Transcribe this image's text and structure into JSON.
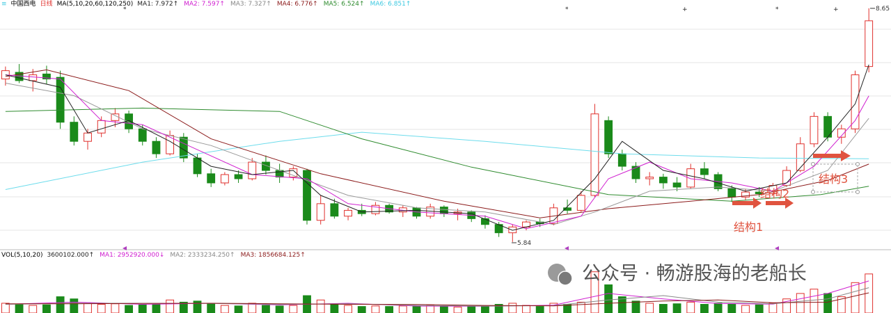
{
  "chart_data": {
    "type": "candlestick",
    "title": "中国西电",
    "period": "日线",
    "ma_label": "MA(5,10,20,60,120,250)",
    "indicators": [
      {
        "text": "MA1: 7.972↑",
        "color": "#222222"
      },
      {
        "text": "MA2: 7.597↑",
        "color": "#d020d0"
      },
      {
        "text": "MA3: 7.327↑",
        "color": "#888888"
      },
      {
        "text": "MA4: 6.776↑",
        "color": "#8b1a1a"
      },
      {
        "text": "MA5: 6.524↑",
        "color": "#2e8b2e"
      },
      {
        "text": "MA6: 6.851↑",
        "color": "#3cc8e0"
      }
    ],
    "up_color": "#e0302c",
    "down_color": "#1a8a1a",
    "xlim": [
      -0.4,
      63.6
    ],
    "ylim": [
      5.78,
      8.75
    ],
    "ohlc": [
      [
        7.8,
        7.95,
        7.72,
        7.9
      ],
      [
        7.88,
        7.98,
        7.75,
        7.78
      ],
      [
        7.78,
        7.92,
        7.65,
        7.85
      ],
      [
        7.86,
        7.96,
        7.74,
        7.8
      ],
      [
        7.82,
        7.9,
        7.2,
        7.28
      ],
      [
        7.28,
        7.35,
        7.0,
        7.05
      ],
      [
        7.05,
        7.2,
        6.95,
        7.15
      ],
      [
        7.15,
        7.35,
        7.1,
        7.3
      ],
      [
        7.3,
        7.45,
        7.22,
        7.38
      ],
      [
        7.38,
        7.42,
        7.15,
        7.2
      ],
      [
        7.2,
        7.25,
        7.0,
        7.05
      ],
      [
        7.05,
        7.1,
        6.85,
        6.9
      ],
      [
        6.9,
        7.18,
        6.88,
        7.12
      ],
      [
        7.1,
        7.15,
        6.8,
        6.85
      ],
      [
        6.85,
        6.9,
        6.62,
        6.66
      ],
      [
        6.66,
        6.72,
        6.5,
        6.55
      ],
      [
        6.55,
        6.68,
        6.52,
        6.65
      ],
      [
        6.65,
        6.7,
        6.55,
        6.6
      ],
      [
        6.6,
        6.85,
        6.58,
        6.8
      ],
      [
        6.8,
        6.88,
        6.65,
        6.7
      ],
      [
        6.7,
        6.78,
        6.55,
        6.62
      ],
      [
        6.62,
        6.75,
        6.58,
        6.72
      ],
      [
        6.7,
        6.72,
        6.05,
        6.1
      ],
      [
        6.1,
        6.4,
        6.05,
        6.3
      ],
      [
        6.3,
        6.36,
        6.12,
        6.15
      ],
      [
        6.15,
        6.25,
        6.1,
        6.22
      ],
      [
        6.22,
        6.3,
        6.15,
        6.18
      ],
      [
        6.18,
        6.32,
        6.16,
        6.28
      ],
      [
        6.28,
        6.3,
        6.18,
        6.2
      ],
      [
        6.2,
        6.28,
        6.14,
        6.25
      ],
      [
        6.25,
        6.26,
        6.12,
        6.15
      ],
      [
        6.15,
        6.3,
        6.12,
        6.26
      ],
      [
        6.26,
        6.28,
        6.14,
        6.18
      ],
      [
        6.18,
        6.24,
        6.1,
        6.2
      ],
      [
        6.2,
        6.22,
        6.08,
        6.12
      ],
      [
        6.12,
        6.16,
        6.0,
        6.05
      ],
      [
        6.05,
        6.08,
        5.9,
        5.95
      ],
      [
        5.95,
        6.05,
        5.84,
        6.02
      ],
      [
        6.02,
        6.1,
        5.98,
        6.08
      ],
      [
        6.08,
        6.12,
        6.02,
        6.06
      ],
      [
        6.06,
        6.3,
        6.04,
        6.25
      ],
      [
        6.25,
        6.35,
        6.18,
        6.22
      ],
      [
        6.22,
        6.45,
        6.2,
        6.4
      ],
      [
        6.4,
        7.5,
        6.38,
        7.38
      ],
      [
        7.3,
        7.35,
        6.85,
        6.9
      ],
      [
        6.9,
        6.95,
        6.7,
        6.75
      ],
      [
        6.75,
        6.8,
        6.55,
        6.6
      ],
      [
        6.6,
        6.68,
        6.52,
        6.62
      ],
      [
        6.62,
        6.66,
        6.48,
        6.55
      ],
      [
        6.55,
        6.62,
        6.45,
        6.5
      ],
      [
        6.5,
        6.78,
        6.48,
        6.72
      ],
      [
        6.72,
        6.8,
        6.6,
        6.65
      ],
      [
        6.65,
        6.68,
        6.45,
        6.48
      ],
      [
        6.48,
        6.52,
        6.32,
        6.38
      ],
      [
        6.38,
        6.48,
        6.34,
        6.44
      ],
      [
        6.44,
        6.5,
        6.38,
        6.42
      ],
      [
        6.42,
        6.55,
        6.4,
        6.52
      ],
      [
        6.52,
        6.75,
        6.5,
        6.7
      ],
      [
        6.7,
        7.1,
        6.68,
        7.02
      ],
      [
        7.02,
        7.4,
        6.98,
        7.35
      ],
      [
        7.35,
        7.4,
        7.05,
        7.1
      ],
      [
        7.1,
        7.25,
        7.02,
        7.2
      ],
      [
        7.2,
        7.9,
        7.15,
        7.85
      ],
      [
        7.95,
        8.65,
        7.88,
        8.5
      ]
    ],
    "ma_series": [
      {
        "color": "#6cdcec",
        "x": [
          0,
          10,
          20,
          26,
          35,
          45,
          55,
          63
        ],
        "values": [
          6.47,
          6.8,
          7.05,
          7.16,
          7.05,
          6.9,
          6.85,
          6.84
        ]
      },
      {
        "color": "#2e8b2e",
        "x": [
          0,
          10,
          20,
          26,
          34,
          44,
          53,
          59.5,
          63
        ],
        "values": [
          7.41,
          7.45,
          7.41,
          7.08,
          6.74,
          6.41,
          6.33,
          6.41,
          6.51
        ]
      },
      {
        "color": "#8b1a1a",
        "x": [
          0,
          3,
          9,
          15,
          23,
          32,
          39,
          44,
          50,
          55,
          60,
          63
        ],
        "values": [
          7.83,
          7.91,
          7.66,
          7.08,
          6.66,
          6.33,
          6.13,
          6.24,
          6.33,
          6.41,
          6.58,
          6.776
        ]
      },
      {
        "color": "#999999",
        "x": [
          0,
          5,
          10,
          15,
          20,
          25,
          30,
          35,
          40,
          43,
          47,
          52,
          56,
          60,
          63
        ],
        "values": [
          7.75,
          7.6,
          7.2,
          7.0,
          6.7,
          6.4,
          6.25,
          6.2,
          6.05,
          6.2,
          6.45,
          6.5,
          6.45,
          6.7,
          7.327
        ]
      },
      {
        "color": "#d020d0",
        "x": [
          0,
          4,
          7,
          10,
          14,
          18,
          22,
          25,
          30,
          35,
          38,
          42,
          44,
          47,
          50,
          53,
          56,
          59,
          62,
          63
        ],
        "values": [
          7.85,
          7.8,
          7.3,
          7.25,
          6.95,
          6.65,
          6.6,
          6.3,
          6.2,
          6.15,
          6.0,
          6.15,
          6.6,
          6.8,
          6.6,
          6.55,
          6.45,
          6.75,
          7.3,
          7.597
        ]
      },
      {
        "color": "#222222",
        "x": [
          0,
          4,
          6,
          9,
          12,
          15,
          18,
          21,
          23,
          26,
          30,
          34,
          37,
          40,
          43,
          45,
          48,
          51,
          54,
          57,
          60,
          62,
          63
        ],
        "values": [
          7.85,
          7.7,
          7.15,
          7.3,
          7.05,
          6.75,
          6.65,
          6.7,
          6.4,
          6.2,
          6.22,
          6.18,
          5.98,
          6.1,
          6.6,
          7.05,
          6.7,
          6.6,
          6.45,
          6.55,
          7.1,
          7.5,
          7.972
        ]
      }
    ],
    "high_label": 8.65,
    "low_label": 5.84,
    "annotations": [
      "结构1",
      "结构2",
      "结构3"
    ],
    "volume": {
      "label": "VOL(5,10,20)",
      "indicators": [
        {
          "text": "3600102.000↑",
          "color": "#222222"
        },
        {
          "text": "MA1: 2952920.000↓",
          "color": "#d020d0"
        },
        {
          "text": "MA2: 2333234.250↑",
          "color": "#888888"
        },
        {
          "text": "MA3: 1856684.125↑",
          "color": "#8b1a1a"
        }
      ],
      "ylim": [
        0,
        5000000
      ],
      "values": [
        900000,
        800000,
        700000,
        750000,
        1500000,
        1300000,
        900000,
        800000,
        850000,
        700000,
        750000,
        800000,
        1200000,
        1000000,
        1100000,
        900000,
        700000,
        650000,
        900000,
        700000,
        650000,
        700000,
        1600000,
        1200000,
        800000,
        700000,
        600000,
        650000,
        600000,
        650000,
        600000,
        700000,
        600000,
        550000,
        600000,
        650000,
        800000,
        900000,
        700000,
        600000,
        900000,
        800000,
        1000000,
        3800000,
        2600000,
        1500000,
        1100000,
        900000,
        800000,
        850000,
        1000000,
        800000,
        900000,
        800000,
        700000,
        750000,
        900000,
        1300000,
        1800000,
        2200000,
        1800000,
        1500000,
        2800000,
        3600102
      ],
      "ma_series": [
        {
          "color": "#d020d0",
          "x": [
            0,
            5,
            10,
            15,
            20,
            25,
            30,
            35,
            40,
            44,
            48,
            52,
            56,
            60,
            63
          ],
          "values": [
            800000,
            1000000,
            800000,
            900000,
            750000,
            900000,
            640000,
            630000,
            720000,
            1800000,
            1300000,
            870000,
            820000,
            1800000,
            2952920
          ]
        },
        {
          "color": "#888888",
          "x": [
            0,
            5,
            10,
            15,
            20,
            25,
            30,
            35,
            40,
            44,
            48,
            52,
            56,
            60,
            63
          ],
          "values": [
            800000,
            900000,
            900000,
            880000,
            800000,
            850000,
            700000,
            640000,
            680000,
            1200000,
            1600000,
            1000000,
            850000,
            1300000,
            2333234
          ]
        },
        {
          "color": "#8b1a1a",
          "x": [
            0,
            5,
            10,
            15,
            20,
            25,
            30,
            35,
            40,
            44,
            48,
            52,
            56,
            60,
            63
          ],
          "values": [
            850000,
            850000,
            880000,
            900000,
            850000,
            800000,
            780000,
            700000,
            660000,
            900000,
            1100000,
            1200000,
            950000,
            1000000,
            1856684
          ]
        }
      ]
    }
  },
  "watermark": "公众号 · 畅游股海的老船长"
}
